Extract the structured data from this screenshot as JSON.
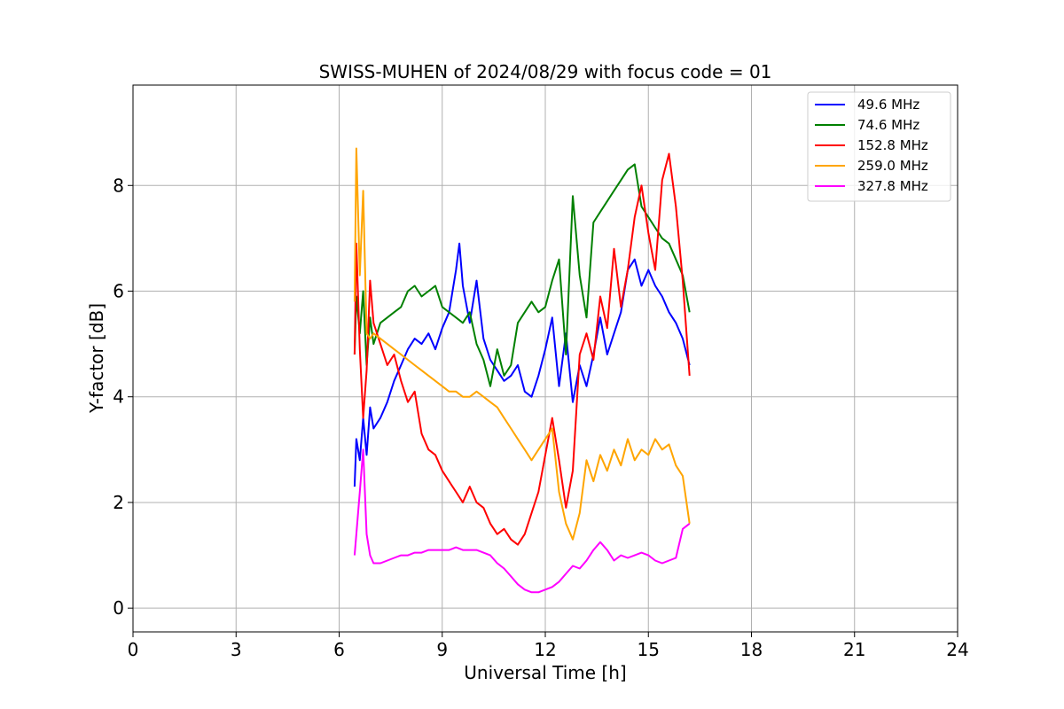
{
  "chart_data": {
    "type": "line",
    "title": "SWISS-MUHEN of 2024/08/29 with focus code = 01",
    "xlabel": "Universal Time [h]",
    "ylabel": "Y-factor [dB]",
    "xlim": [
      0,
      24
    ],
    "ylim": [
      -0.45,
      9.9
    ],
    "xticks": [
      0,
      3,
      6,
      9,
      12,
      15,
      18,
      21,
      24
    ],
    "yticks": [
      0,
      2,
      4,
      6,
      8
    ],
    "grid": true,
    "legend_position": "top-right",
    "series": [
      {
        "name": " 49.6 MHz",
        "color": "#0000ff",
        "x": [
          6.45,
          6.5,
          6.6,
          6.7,
          6.8,
          6.9,
          7.0,
          7.2,
          7.4,
          7.6,
          7.8,
          8.0,
          8.2,
          8.4,
          8.6,
          8.8,
          9.0,
          9.2,
          9.4,
          9.5,
          9.6,
          9.8,
          10.0,
          10.2,
          10.4,
          10.6,
          10.8,
          11.0,
          11.2,
          11.4,
          11.6,
          11.8,
          12.0,
          12.2,
          12.4,
          12.6,
          12.8,
          13.0,
          13.2,
          13.4,
          13.6,
          13.8,
          14.0,
          14.2,
          14.4,
          14.6,
          14.8,
          15.0,
          15.2,
          15.4,
          15.6,
          15.8,
          16.0,
          16.2
        ],
        "y": [
          2.3,
          3.2,
          2.8,
          3.6,
          2.9,
          3.8,
          3.4,
          3.6,
          3.9,
          4.3,
          4.6,
          4.9,
          5.1,
          5.0,
          5.2,
          4.9,
          5.3,
          5.6,
          6.4,
          6.9,
          6.1,
          5.4,
          6.2,
          5.1,
          4.7,
          4.5,
          4.3,
          4.4,
          4.6,
          4.1,
          4.0,
          4.4,
          4.9,
          5.5,
          4.2,
          5.2,
          3.9,
          4.6,
          4.2,
          4.8,
          5.5,
          4.8,
          5.2,
          5.6,
          6.4,
          6.6,
          6.1,
          6.4,
          6.1,
          5.9,
          5.6,
          5.4,
          5.1,
          4.6
        ]
      },
      {
        "name": " 74.6 MHz",
        "color": "#008000",
        "x": [
          6.45,
          6.5,
          6.6,
          6.7,
          6.8,
          6.9,
          7.0,
          7.2,
          7.4,
          7.6,
          7.8,
          8.0,
          8.2,
          8.4,
          8.6,
          8.8,
          9.0,
          9.2,
          9.4,
          9.6,
          9.8,
          10.0,
          10.2,
          10.4,
          10.6,
          10.8,
          11.0,
          11.2,
          11.4,
          11.6,
          11.8,
          12.0,
          12.2,
          12.4,
          12.6,
          12.8,
          13.0,
          13.2,
          13.4,
          13.6,
          13.8,
          14.0,
          14.2,
          14.4,
          14.6,
          14.8,
          15.0,
          15.2,
          15.4,
          15.6,
          15.8,
          16.0,
          16.2
        ],
        "y": [
          4.8,
          5.9,
          5.2,
          6.0,
          4.6,
          5.5,
          5.0,
          5.4,
          5.5,
          5.6,
          5.7,
          6.0,
          6.1,
          5.9,
          6.0,
          6.1,
          5.7,
          5.6,
          5.5,
          5.4,
          5.6,
          5.0,
          4.7,
          4.2,
          4.9,
          4.4,
          4.6,
          5.4,
          5.6,
          5.8,
          5.6,
          5.7,
          6.2,
          6.6,
          4.8,
          7.8,
          6.3,
          5.5,
          7.3,
          7.5,
          7.7,
          7.9,
          8.1,
          8.3,
          8.4,
          7.6,
          7.4,
          7.2,
          7.0,
          6.9,
          6.6,
          6.3,
          5.6
        ]
      },
      {
        "name": " 152.8 MHz",
        "color": "#ff0000",
        "x": [
          6.45,
          6.5,
          6.6,
          6.7,
          6.8,
          6.9,
          7.0,
          7.2,
          7.4,
          7.6,
          7.8,
          8.0,
          8.2,
          8.4,
          8.6,
          8.8,
          9.0,
          9.2,
          9.4,
          9.6,
          9.8,
          10.0,
          10.2,
          10.4,
          10.6,
          10.8,
          11.0,
          11.2,
          11.4,
          11.6,
          11.8,
          12.0,
          12.2,
          12.4,
          12.6,
          12.8,
          13.0,
          13.2,
          13.4,
          13.6,
          13.8,
          14.0,
          14.2,
          14.4,
          14.6,
          14.8,
          15.0,
          15.2,
          15.4,
          15.6,
          15.8,
          16.0,
          16.2
        ],
        "y": [
          4.8,
          6.9,
          4.9,
          3.6,
          4.5,
          6.2,
          5.4,
          5.0,
          4.6,
          4.8,
          4.3,
          3.9,
          4.1,
          3.3,
          3.0,
          2.9,
          2.6,
          2.4,
          2.2,
          2.0,
          2.3,
          2.0,
          1.9,
          1.6,
          1.4,
          1.5,
          1.3,
          1.2,
          1.4,
          1.8,
          2.2,
          2.9,
          3.6,
          2.8,
          1.9,
          2.6,
          4.8,
          5.2,
          4.7,
          5.9,
          5.3,
          6.8,
          5.7,
          6.4,
          7.4,
          8.0,
          7.1,
          6.4,
          8.1,
          8.6,
          7.6,
          6.2,
          4.4
        ]
      },
      {
        "name": " 259.0 MHz",
        "color": "#ffa500",
        "x": [
          6.45,
          6.5,
          6.6,
          6.7,
          6.8,
          6.9,
          7.0,
          7.2,
          7.4,
          7.6,
          7.8,
          8.0,
          8.2,
          8.4,
          8.6,
          8.8,
          9.0,
          9.2,
          9.4,
          9.6,
          9.8,
          10.0,
          10.2,
          10.4,
          10.6,
          10.8,
          11.0,
          11.2,
          11.4,
          11.6,
          11.8,
          12.0,
          12.2,
          12.4,
          12.6,
          12.8,
          13.0,
          13.2,
          13.4,
          13.6,
          13.8,
          14.0,
          14.2,
          14.4,
          14.6,
          14.8,
          15.0,
          15.2,
          15.4,
          15.6,
          15.8,
          16.0,
          16.2
        ],
        "y": [
          5.8,
          8.7,
          6.3,
          7.9,
          5.2,
          5.1,
          5.2,
          5.1,
          5.0,
          4.9,
          4.8,
          4.7,
          4.6,
          4.5,
          4.4,
          4.3,
          4.2,
          4.1,
          4.1,
          4.0,
          4.0,
          4.1,
          4.0,
          3.9,
          3.8,
          3.6,
          3.4,
          3.2,
          3.0,
          2.8,
          3.0,
          3.2,
          3.4,
          2.2,
          1.6,
          1.3,
          1.8,
          2.8,
          2.4,
          2.9,
          2.6,
          3.0,
          2.7,
          3.2,
          2.8,
          3.0,
          2.9,
          3.2,
          3.0,
          3.1,
          2.7,
          2.5,
          1.6
        ]
      },
      {
        "name": " 327.8 MHz",
        "color": "#ff00ff",
        "x": [
          6.45,
          6.5,
          6.6,
          6.7,
          6.8,
          6.9,
          7.0,
          7.2,
          7.4,
          7.6,
          7.8,
          8.0,
          8.2,
          8.4,
          8.6,
          8.8,
          9.0,
          9.2,
          9.4,
          9.6,
          9.8,
          10.0,
          10.2,
          10.4,
          10.6,
          10.8,
          11.0,
          11.2,
          11.4,
          11.6,
          11.8,
          12.0,
          12.2,
          12.4,
          12.6,
          12.8,
          13.0,
          13.2,
          13.4,
          13.6,
          13.8,
          14.0,
          14.2,
          14.4,
          14.6,
          14.8,
          15.0,
          15.2,
          15.4,
          15.6,
          15.8,
          16.0,
          16.2
        ],
        "y": [
          1.0,
          1.4,
          2.2,
          3.0,
          1.4,
          1.0,
          0.85,
          0.85,
          0.9,
          0.95,
          1.0,
          1.0,
          1.05,
          1.05,
          1.1,
          1.1,
          1.1,
          1.1,
          1.15,
          1.1,
          1.1,
          1.1,
          1.05,
          1.0,
          0.85,
          0.75,
          0.6,
          0.45,
          0.35,
          0.3,
          0.3,
          0.35,
          0.4,
          0.5,
          0.65,
          0.8,
          0.75,
          0.9,
          1.1,
          1.25,
          1.1,
          0.9,
          1.0,
          0.95,
          1.0,
          1.05,
          1.0,
          0.9,
          0.85,
          0.9,
          0.95,
          1.5,
          1.6
        ]
      }
    ]
  }
}
